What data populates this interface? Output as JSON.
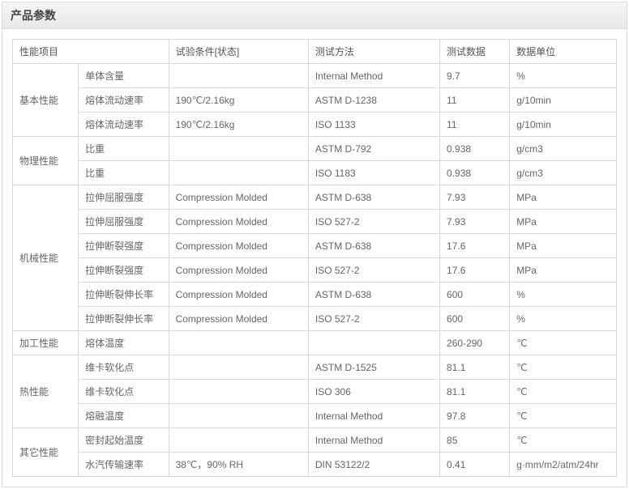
{
  "title": "产品参数",
  "columns": [
    "性能项目",
    "试验条件[状态]",
    "测试方法",
    "测试数据",
    "数据单位"
  ],
  "groups": [
    {
      "name": "基本性能",
      "rows": [
        {
          "item": "单体含量",
          "cond": "",
          "method": "Internal Method",
          "value": "9.7",
          "unit": "%"
        },
        {
          "item": "熔体流动速率",
          "cond": "190℃/2.16kg",
          "method": "ASTM D-1238",
          "value": "11",
          "unit": "g/10min"
        },
        {
          "item": "熔体流动速率",
          "cond": "190℃/2.16kg",
          "method": "ISO 1133",
          "value": "11",
          "unit": "g/10min"
        }
      ]
    },
    {
      "name": "物理性能",
      "rows": [
        {
          "item": "比重",
          "cond": "",
          "method": "ASTM D-792",
          "value": "0.938",
          "unit": "g/cm3"
        },
        {
          "item": "比重",
          "cond": "",
          "method": "ISO 1183",
          "value": "0.938",
          "unit": "g/cm3"
        }
      ]
    },
    {
      "name": "机械性能",
      "rows": [
        {
          "item": "拉伸屈服强度",
          "cond": "Compression Molded",
          "method": "ASTM D-638",
          "value": "7.93",
          "unit": "MPa"
        },
        {
          "item": "拉伸屈服强度",
          "cond": "Compression Molded",
          "method": "ISO 527-2",
          "value": "7.93",
          "unit": "MPa"
        },
        {
          "item": "拉伸断裂强度",
          "cond": "Compression Molded",
          "method": "ASTM D-638",
          "value": "17.6",
          "unit": "MPa"
        },
        {
          "item": "拉伸断裂强度",
          "cond": "Compression Molded",
          "method": "ISO 527-2",
          "value": "17.6",
          "unit": "MPa"
        },
        {
          "item": "拉伸断裂伸长率",
          "cond": "Compression Molded",
          "method": "ASTM D-638",
          "value": "600",
          "unit": "%"
        },
        {
          "item": "拉伸断裂伸长率",
          "cond": "Compression Molded",
          "method": "ISO 527-2",
          "value": "600",
          "unit": "%"
        }
      ]
    },
    {
      "name": "加工性能",
      "rows": [
        {
          "item": "熔体温度",
          "cond": "",
          "method": "",
          "value": "260-290",
          "unit": "℃"
        }
      ]
    },
    {
      "name": "热性能",
      "rows": [
        {
          "item": "维卡软化点",
          "cond": "",
          "method": "ASTM D-1525",
          "value": "81.1",
          "unit": "℃"
        },
        {
          "item": "维卡软化点",
          "cond": "",
          "method": "ISO 306",
          "value": "81.1",
          "unit": "℃"
        },
        {
          "item": "熔融温度",
          "cond": "",
          "method": "Internal Method",
          "value": "97.8",
          "unit": "℃"
        }
      ]
    },
    {
      "name": "其它性能",
      "rows": [
        {
          "item": "密封起始温度",
          "cond": "",
          "method": "Internal Method",
          "value": "85",
          "unit": "℃"
        },
        {
          "item": "水汽传输速率",
          "cond": "38℃，90% RH",
          "method": "DIN 53122/2",
          "value": "0.41",
          "unit": "g·mm/m2/atm/24hr"
        }
      ]
    }
  ]
}
